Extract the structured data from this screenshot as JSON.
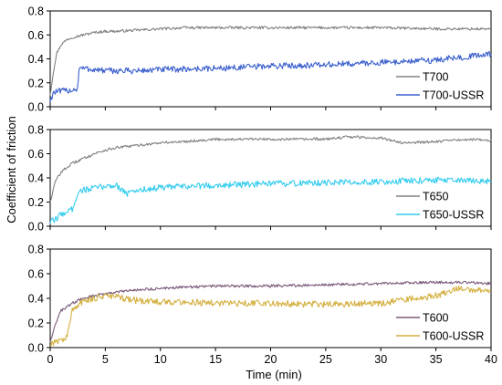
{
  "figure": {
    "ylabel": "Coefficient of friction",
    "xlabel": "Time (min)"
  },
  "chart_data": [
    {
      "type": "line",
      "xlim": [
        0,
        40
      ],
      "ylim": [
        0,
        0.8
      ],
      "yticks": [
        "0.0",
        "0.2",
        "0.4",
        "0.6",
        "0.8"
      ],
      "legend_position": "bottom-right",
      "series": [
        {
          "name": "T700",
          "color": "#808080",
          "x": [
            0,
            0.3,
            0.6,
            1,
            1.5,
            2,
            3,
            4,
            5,
            6,
            8,
            10,
            12,
            15,
            18,
            20,
            25,
            30,
            35,
            40
          ],
          "y": [
            0.1,
            0.3,
            0.45,
            0.52,
            0.56,
            0.58,
            0.6,
            0.62,
            0.63,
            0.63,
            0.64,
            0.65,
            0.66,
            0.66,
            0.66,
            0.66,
            0.66,
            0.66,
            0.65,
            0.65
          ]
        },
        {
          "name": "T700-USSR",
          "color": "#3a5fcd",
          "x": [
            0,
            0.3,
            1,
            2,
            2.5,
            2.6,
            3,
            5,
            8,
            10,
            15,
            20,
            25,
            30,
            35,
            38,
            40
          ],
          "y": [
            0.05,
            0.12,
            0.13,
            0.14,
            0.15,
            0.32,
            0.32,
            0.3,
            0.3,
            0.31,
            0.32,
            0.34,
            0.35,
            0.37,
            0.39,
            0.42,
            0.44
          ]
        }
      ]
    },
    {
      "type": "line",
      "xlim": [
        0,
        40
      ],
      "ylim": [
        0,
        0.8
      ],
      "yticks": [
        "0.0",
        "0.2",
        "0.4",
        "0.6",
        "0.8"
      ],
      "legend_position": "bottom-right",
      "series": [
        {
          "name": "T650",
          "color": "#808080",
          "x": [
            0,
            0.5,
            1,
            2,
            3,
            4,
            5,
            6,
            8,
            10,
            12,
            15,
            18,
            20,
            25,
            27,
            30,
            32,
            35,
            38,
            40
          ],
          "y": [
            0.2,
            0.38,
            0.45,
            0.52,
            0.56,
            0.6,
            0.63,
            0.65,
            0.67,
            0.69,
            0.7,
            0.72,
            0.72,
            0.72,
            0.72,
            0.74,
            0.73,
            0.69,
            0.7,
            0.72,
            0.71
          ]
        },
        {
          "name": "T650-USSR",
          "color": "#33ccee",
          "x": [
            0,
            0.5,
            1,
            2,
            2.5,
            3,
            5,
            6,
            7,
            8,
            10,
            15,
            20,
            25,
            30,
            35,
            40
          ],
          "y": [
            0.03,
            0.06,
            0.1,
            0.14,
            0.28,
            0.3,
            0.33,
            0.34,
            0.27,
            0.3,
            0.32,
            0.34,
            0.35,
            0.36,
            0.37,
            0.38,
            0.37
          ]
        }
      ]
    },
    {
      "type": "line",
      "xlim": [
        0,
        40
      ],
      "ylim": [
        0,
        0.8
      ],
      "yticks": [
        "0.0",
        "0.2",
        "0.4",
        "0.6",
        "0.8"
      ],
      "xticks": [
        "0",
        "5",
        "10",
        "15",
        "20",
        "25",
        "30",
        "35",
        "40"
      ],
      "legend_position": "bottom-right",
      "series": [
        {
          "name": "T600",
          "color": "#7a5a7a",
          "x": [
            0,
            0.5,
            1,
            2,
            3,
            4,
            5,
            6,
            8,
            10,
            12,
            15,
            20,
            25,
            30,
            35,
            38,
            40
          ],
          "y": [
            0.05,
            0.2,
            0.3,
            0.36,
            0.4,
            0.42,
            0.44,
            0.45,
            0.47,
            0.48,
            0.49,
            0.5,
            0.5,
            0.51,
            0.52,
            0.53,
            0.53,
            0.52
          ]
        },
        {
          "name": "T600-USSR",
          "color": "#d4b040",
          "x": [
            0,
            0.5,
            1,
            1.5,
            2,
            3,
            5,
            6,
            8,
            10,
            12,
            15,
            20,
            25,
            30,
            33,
            35,
            37,
            40
          ],
          "y": [
            0.03,
            0.05,
            0.06,
            0.08,
            0.3,
            0.38,
            0.42,
            0.41,
            0.38,
            0.37,
            0.37,
            0.36,
            0.36,
            0.35,
            0.36,
            0.4,
            0.42,
            0.48,
            0.46
          ]
        }
      ]
    }
  ]
}
